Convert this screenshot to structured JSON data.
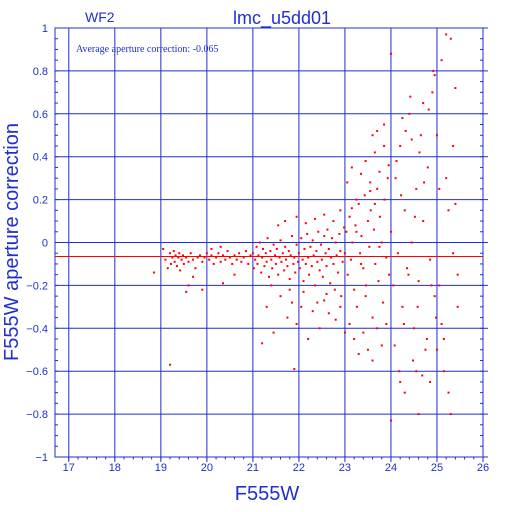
{
  "chart_data": {
    "type": "scatter",
    "title": "lmc_u5dd01",
    "chip_label": "WF2",
    "annotation": "Average aperture correction: -0.065",
    "xlabel": "F555W",
    "ylabel": "F555W aperture correction",
    "xlim": [
      16.7,
      26.0
    ],
    "ylim": [
      -1.0,
      1.0
    ],
    "x_ticks": [
      17,
      18,
      19,
      20,
      21,
      22,
      23,
      24,
      25,
      26
    ],
    "y_ticks": [
      -1,
      -0.8,
      -0.6,
      -0.4,
      -0.2,
      0,
      0.2,
      0.4,
      0.6,
      0.8,
      1
    ],
    "x_tick_labels": [
      "17",
      "18",
      "19",
      "20",
      "21",
      "22",
      "23",
      "24",
      "25",
      "26"
    ],
    "y_tick_labels": [
      "−1",
      "−0.8",
      "−0.6",
      "−0.4",
      "−0.2",
      "0",
      "0.2",
      "0.4",
      "0.6",
      "0.8",
      "1"
    ],
    "grid": true,
    "reference_line": -0.065,
    "colors": {
      "axes": "#1f2fd0",
      "points": "#ff0000",
      "reference_line": "#ff0000"
    },
    "points": [
      [
        18.85,
        -0.14
      ],
      [
        19.05,
        -0.03
      ],
      [
        19.1,
        -0.08
      ],
      [
        19.15,
        -0.12
      ],
      [
        19.2,
        -0.05
      ],
      [
        19.22,
        -0.1
      ],
      [
        19.25,
        -0.07
      ],
      [
        19.28,
        -0.04
      ],
      [
        19.3,
        -0.09
      ],
      [
        19.32,
        -0.06
      ],
      [
        19.35,
        -0.11
      ],
      [
        19.38,
        -0.07
      ],
      [
        19.4,
        -0.05
      ],
      [
        19.42,
        -0.13
      ],
      [
        19.45,
        -0.08
      ],
      [
        19.48,
        -0.06
      ],
      [
        19.5,
        -0.1
      ],
      [
        19.55,
        -0.07
      ],
      [
        19.6,
        -0.09
      ],
      [
        19.65,
        -0.05
      ],
      [
        19.7,
        -0.08
      ],
      [
        19.75,
        -0.12
      ],
      [
        19.8,
        -0.07
      ],
      [
        19.85,
        -0.06
      ],
      [
        19.9,
        -0.09
      ],
      [
        19.95,
        -0.07
      ],
      [
        20.0,
        -0.05
      ],
      [
        20.05,
        -0.08
      ],
      [
        20.1,
        -0.06
      ],
      [
        20.15,
        -0.1
      ],
      [
        20.2,
        -0.07
      ],
      [
        20.25,
        -0.05
      ],
      [
        20.3,
        -0.09
      ],
      [
        20.35,
        -0.06
      ],
      [
        20.4,
        -0.08
      ],
      [
        20.45,
        -0.04
      ],
      [
        20.5,
        -0.07
      ],
      [
        20.55,
        -0.1
      ],
      [
        20.6,
        -0.06
      ],
      [
        20.65,
        -0.08
      ],
      [
        20.7,
        -0.05
      ],
      [
        20.75,
        -0.09
      ],
      [
        20.8,
        -0.07
      ],
      [
        20.85,
        -0.04
      ],
      [
        20.9,
        -0.1
      ],
      [
        20.95,
        -0.06
      ],
      [
        19.2,
        -0.57
      ],
      [
        19.55,
        -0.23
      ],
      [
        19.7,
        -0.16
      ],
      [
        19.9,
        -0.22
      ],
      [
        20.35,
        -0.19
      ],
      [
        20.6,
        -0.15
      ],
      [
        19.6,
        -0.2
      ],
      [
        20.1,
        -0.03
      ],
      [
        20.3,
        -0.02
      ],
      [
        21.0,
        -0.05
      ],
      [
        21.02,
        -0.12
      ],
      [
        21.05,
        -0.08
      ],
      [
        21.08,
        -0.02
      ],
      [
        21.1,
        -0.1
      ],
      [
        21.12,
        -0.06
      ],
      [
        21.15,
        0.0
      ],
      [
        21.18,
        -0.14
      ],
      [
        21.2,
        -0.07
      ],
      [
        21.22,
        -0.03
      ],
      [
        21.25,
        -0.11
      ],
      [
        21.28,
        -0.05
      ],
      [
        21.3,
        -0.09
      ],
      [
        21.32,
        0.02
      ],
      [
        21.35,
        -0.16
      ],
      [
        21.38,
        -0.04
      ],
      [
        21.4,
        -0.08
      ],
      [
        21.42,
        -0.12
      ],
      [
        21.45,
        -0.01
      ],
      [
        21.48,
        -0.06
      ],
      [
        21.5,
        -0.1
      ],
      [
        21.52,
        -0.03
      ],
      [
        21.55,
        -0.15
      ],
      [
        21.58,
        -0.07
      ],
      [
        21.6,
        0.01
      ],
      [
        21.62,
        -0.09
      ],
      [
        21.65,
        -0.05
      ],
      [
        21.68,
        -0.13
      ],
      [
        21.7,
        -0.02
      ],
      [
        21.72,
        -0.08
      ],
      [
        21.75,
        -0.11
      ],
      [
        21.78,
        -0.04
      ],
      [
        21.8,
        -0.17
      ],
      [
        21.82,
        -0.06
      ],
      [
        21.85,
        0.03
      ],
      [
        21.88,
        -0.1
      ],
      [
        21.9,
        -0.07
      ],
      [
        21.92,
        -0.14
      ],
      [
        21.95,
        -0.01
      ],
      [
        21.98,
        -0.09
      ],
      [
        22.0,
        -0.05
      ],
      [
        22.02,
        -0.12
      ],
      [
        22.05,
        0.02
      ],
      [
        22.08,
        -0.08
      ],
      [
        22.1,
        -0.18
      ],
      [
        22.12,
        -0.03
      ],
      [
        22.15,
        -0.1
      ],
      [
        22.18,
        0.04
      ],
      [
        22.2,
        -0.07
      ],
      [
        22.22,
        -0.15
      ],
      [
        22.25,
        -0.02
      ],
      [
        22.28,
        -0.11
      ],
      [
        22.3,
        0.01
      ],
      [
        22.32,
        -0.06
      ],
      [
        22.35,
        -0.2
      ],
      [
        22.38,
        -0.04
      ],
      [
        22.4,
        -0.09
      ],
      [
        22.42,
        0.05
      ],
      [
        22.45,
        -0.13
      ],
      [
        22.48,
        -0.01
      ],
      [
        22.5,
        -0.08
      ],
      [
        22.52,
        -0.16
      ],
      [
        22.55,
        0.03
      ],
      [
        22.58,
        -0.05
      ],
      [
        22.6,
        -0.11
      ],
      [
        22.62,
        0.06
      ],
      [
        22.65,
        -0.03
      ],
      [
        22.68,
        -0.19
      ],
      [
        22.7,
        -0.07
      ],
      [
        22.72,
        0.02
      ],
      [
        22.75,
        -0.1
      ],
      [
        22.78,
        -0.22
      ],
      [
        22.8,
        0.0
      ],
      [
        22.82,
        -0.06
      ],
      [
        22.85,
        -0.14
      ],
      [
        22.88,
        0.04
      ],
      [
        22.9,
        -0.04
      ],
      [
        22.92,
        -0.25
      ],
      [
        22.95,
        -0.09
      ],
      [
        22.98,
        0.07
      ],
      [
        21.3,
        -0.3
      ],
      [
        21.45,
        -0.42
      ],
      [
        21.6,
        -0.25
      ],
      [
        21.75,
        -0.35
      ],
      [
        21.85,
        -0.28
      ],
      [
        21.95,
        -0.38
      ],
      [
        22.05,
        -0.3
      ],
      [
        22.2,
        -0.45
      ],
      [
        22.3,
        -0.32
      ],
      [
        22.45,
        -0.4
      ],
      [
        22.55,
        -0.27
      ],
      [
        22.65,
        -0.33
      ],
      [
        22.8,
        -0.36
      ],
      [
        22.9,
        -0.3
      ],
      [
        21.2,
        -0.47
      ],
      [
        21.9,
        -0.59
      ],
      [
        22.4,
        -0.28
      ],
      [
        21.7,
        0.1
      ],
      [
        21.95,
        0.12
      ],
      [
        22.15,
        0.09
      ],
      [
        22.35,
        0.11
      ],
      [
        22.55,
        0.13
      ],
      [
        22.75,
        0.1
      ],
      [
        22.9,
        0.15
      ],
      [
        21.55,
        0.08
      ],
      [
        21.4,
        -0.2
      ],
      [
        22.1,
        -0.23
      ],
      [
        22.6,
        -0.24
      ],
      [
        21.8,
        -0.22
      ],
      [
        23.0,
        -0.05
      ],
      [
        23.03,
        0.05
      ],
      [
        23.06,
        -0.15
      ],
      [
        23.1,
        0.12
      ],
      [
        23.13,
        -0.08
      ],
      [
        23.16,
        0.0
      ],
      [
        23.2,
        -0.22
      ],
      [
        23.23,
        0.08
      ],
      [
        23.26,
        -0.3
      ],
      [
        23.3,
        0.18
      ],
      [
        23.33,
        -0.05
      ],
      [
        23.36,
        0.03
      ],
      [
        23.4,
        -0.12
      ],
      [
        23.43,
        0.22
      ],
      [
        23.46,
        -0.2
      ],
      [
        23.5,
        0.1
      ],
      [
        23.53,
        -0.02
      ],
      [
        23.56,
        0.15
      ],
      [
        23.6,
        -0.35
      ],
      [
        23.63,
        0.06
      ],
      [
        23.66,
        -0.1
      ],
      [
        23.7,
        0.25
      ],
      [
        23.73,
        -0.18
      ],
      [
        23.76,
        0.12
      ],
      [
        23.8,
        0.0
      ],
      [
        23.83,
        -0.28
      ],
      [
        23.86,
        0.2
      ],
      [
        23.9,
        -0.07
      ],
      [
        23.93,
        0.3
      ],
      [
        23.96,
        -0.15
      ],
      [
        23.05,
        0.28
      ],
      [
        23.15,
        0.35
      ],
      [
        23.25,
        0.2
      ],
      [
        23.35,
        0.32
      ],
      [
        23.45,
        0.38
      ],
      [
        23.55,
        0.28
      ],
      [
        23.65,
        0.42
      ],
      [
        23.75,
        0.33
      ],
      [
        23.85,
        0.45
      ],
      [
        23.95,
        0.36
      ],
      [
        23.1,
        -0.38
      ],
      [
        23.2,
        -0.45
      ],
      [
        23.4,
        -0.42
      ],
      [
        23.5,
        -0.5
      ],
      [
        23.7,
        -0.4
      ],
      [
        23.8,
        -0.48
      ],
      [
        23.9,
        -0.38
      ],
      [
        23.3,
        -0.52
      ],
      [
        23.6,
        -0.55
      ],
      [
        23.0,
        -0.42
      ],
      [
        23.7,
        0.52
      ],
      [
        23.85,
        0.55
      ],
      [
        23.6,
        0.5
      ],
      [
        23.25,
        0.05
      ],
      [
        23.45,
        -0.25
      ],
      [
        23.65,
        0.18
      ],
      [
        23.15,
        0.16
      ],
      [
        23.35,
        -0.1
      ],
      [
        23.55,
        0.24
      ],
      [
        23.75,
        -0.02
      ],
      [
        24.0,
        0.05
      ],
      [
        24.05,
        -0.2
      ],
      [
        24.1,
        0.3
      ],
      [
        24.15,
        -0.05
      ],
      [
        24.2,
        0.45
      ],
      [
        24.25,
        -0.3
      ],
      [
        24.3,
        0.15
      ],
      [
        24.35,
        -0.12
      ],
      [
        24.4,
        0.6
      ],
      [
        24.45,
        0.0
      ],
      [
        24.5,
        -0.4
      ],
      [
        24.55,
        0.25
      ],
      [
        24.6,
        -0.18
      ],
      [
        24.65,
        0.5
      ],
      [
        24.7,
        0.1
      ],
      [
        24.75,
        -0.5
      ],
      [
        24.8,
        0.35
      ],
      [
        24.85,
        -0.08
      ],
      [
        24.9,
        0.7
      ],
      [
        24.95,
        -0.25
      ],
      [
        24.0,
        0.88
      ],
      [
        24.08,
        -0.48
      ],
      [
        24.12,
        0.38
      ],
      [
        24.18,
        -0.6
      ],
      [
        24.22,
        0.22
      ],
      [
        24.28,
        -0.38
      ],
      [
        24.32,
        0.52
      ],
      [
        24.38,
        -0.15
      ],
      [
        24.42,
        0.68
      ],
      [
        24.48,
        -0.55
      ],
      [
        24.52,
        0.12
      ],
      [
        24.58,
        -0.3
      ],
      [
        24.62,
        0.42
      ],
      [
        24.68,
        -0.62
      ],
      [
        24.72,
        0.28
      ],
      [
        24.78,
        -0.45
      ],
      [
        24.82,
        0.62
      ],
      [
        24.88,
        -0.2
      ],
      [
        24.92,
        0.8
      ],
      [
        24.98,
        -0.35
      ],
      [
        24.0,
        -0.83
      ],
      [
        24.3,
        -0.7
      ],
      [
        24.6,
        -0.8
      ],
      [
        24.2,
        -0.65
      ],
      [
        24.55,
        -0.6
      ],
      [
        24.85,
        -0.65
      ],
      [
        24.95,
        0.78
      ],
      [
        24.7,
        0.65
      ],
      [
        24.45,
        0.48
      ],
      [
        24.25,
        0.58
      ],
      [
        25.0,
        0.5
      ],
      [
        25.05,
        -0.2
      ],
      [
        25.1,
        0.85
      ],
      [
        25.15,
        -0.45
      ],
      [
        25.2,
        0.3
      ],
      [
        25.25,
        -0.7
      ],
      [
        25.3,
        0.95
      ],
      [
        25.35,
        -0.05
      ],
      [
        25.4,
        0.72
      ],
      [
        25.45,
        -0.3
      ],
      [
        25.05,
        0.25
      ],
      [
        25.15,
        -0.6
      ],
      [
        25.25,
        0.15
      ],
      [
        25.35,
        0.45
      ],
      [
        25.45,
        -0.15
      ],
      [
        25.3,
        -0.8
      ],
      [
        25.2,
        0.97
      ],
      [
        25.1,
        -0.38
      ],
      [
        25.4,
        0.18
      ],
      [
        25.0,
        -0.5
      ]
    ]
  }
}
